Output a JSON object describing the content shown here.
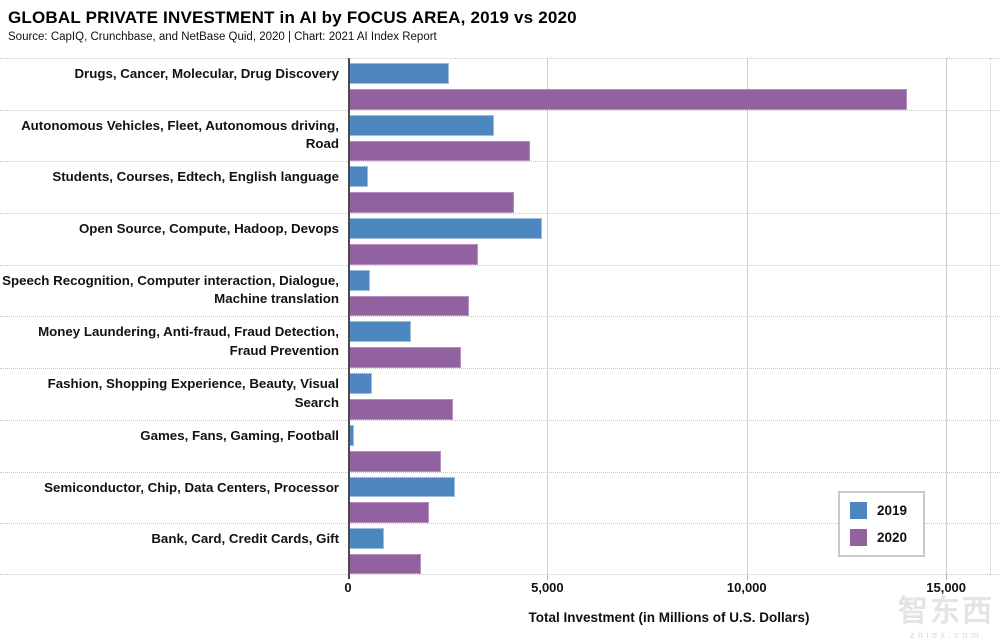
{
  "header": {
    "title": "GLOBAL PRIVATE INVESTMENT in AI by FOCUS AREA, 2019 vs 2020",
    "source": "Source: CapIQ, Crunchbase, and NetBase Quid, 2020 | Chart: 2021 AI Index Report"
  },
  "watermark": {
    "logo": "智东西",
    "site": "zhidx.com"
  },
  "chart_data": {
    "type": "bar",
    "orientation": "horizontal",
    "title": "GLOBAL PRIVATE INVESTMENT in AI by FOCUS AREA, 2019 vs 2020",
    "xlabel": "Total Investment (in Millions of U.S. Dollars)",
    "ylabel": "",
    "xlim": [
      0,
      16100
    ],
    "grid": true,
    "legend_position": "lower right",
    "xticks": [
      {
        "value": 0,
        "label": "0"
      },
      {
        "value": 5000,
        "label": "5,000"
      },
      {
        "value": 10000,
        "label": "10,000"
      },
      {
        "value": 15000,
        "label": "15,000"
      }
    ],
    "categories": [
      "Drugs, Cancer, Molecular, Drug Discovery",
      "Autonomous Vehicles, Fleet, Autonomous driving, Road",
      "Students, Courses, Edtech, English language",
      "Open Source, Compute, Hadoop, Devops",
      "Speech Recognition, Computer interaction, Dialogue, Machine translation",
      "Money Laundering, Anti-fraud, Fraud Detection, Fraud Prevention",
      "Fashion, Shopping Experience, Beauty, Visual Search",
      "Games, Fans, Gaming, Football",
      "Semiconductor, Chip, Data Centers, Processor",
      "Bank, Card, Credit Cards, Gift"
    ],
    "series": [
      {
        "name": "2019",
        "color": "#4e86c0",
        "border_color": "#9cbede",
        "values": [
          2500,
          3600,
          500,
          4800,
          550,
          1550,
          600,
          150,
          2650,
          900
        ]
      },
      {
        "name": "2020",
        "color": "#9161a0",
        "border_color": "#b48fc0",
        "values": [
          13800,
          4500,
          4100,
          3200,
          3000,
          2800,
          2600,
          2300,
          2000,
          1800
        ]
      }
    ]
  }
}
